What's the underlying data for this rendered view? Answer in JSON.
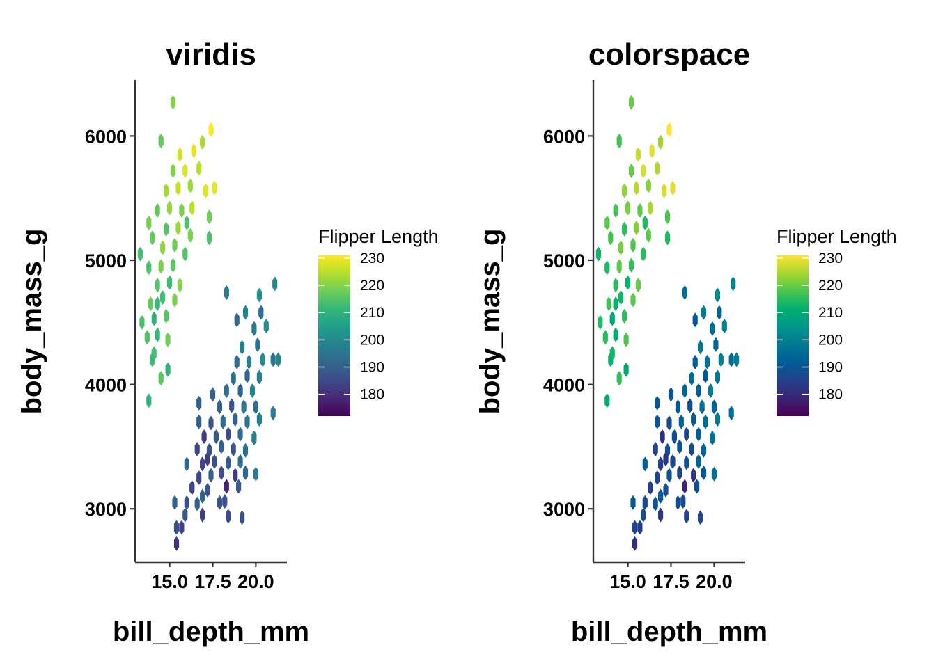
{
  "chart_data": [
    {
      "type": "hexbin",
      "title": "viridis",
      "xlabel": "bill_depth_mm",
      "ylabel": "body_mass_g",
      "xlim": [
        13.0,
        21.8
      ],
      "ylim": [
        2570,
        6450
      ],
      "xticks": [
        15.0,
        17.5,
        20.0
      ],
      "xtick_labels": [
        "15.0",
        "17.5",
        "20.0"
      ],
      "yticks": [
        3000,
        4000,
        5000,
        6000
      ],
      "ytick_labels": [
        "3000",
        "4000",
        "5000",
        "6000"
      ],
      "legend": {
        "title": "Flipper Length",
        "placement": "right",
        "ticks": [
          180,
          190,
          200,
          210,
          220,
          230
        ],
        "tick_labels": [
          "180",
          "190",
          "200",
          "210",
          "220",
          "230"
        ],
        "range": [
          172,
          231
        ],
        "palette": [
          "#440154",
          "#482878",
          "#3E4A89",
          "#31688E",
          "#26828E",
          "#1F9E89",
          "#35B779",
          "#6DCD59",
          "#B4DE2C",
          "#FDE725"
        ]
      }
    },
    {
      "type": "hexbin",
      "title": "colorspace",
      "xlabel": "bill_depth_mm",
      "ylabel": "body_mass_g",
      "xlim": [
        13.0,
        21.8
      ],
      "ylim": [
        2570,
        6450
      ],
      "xticks": [
        15.0,
        17.5,
        20.0
      ],
      "xtick_labels": [
        "15.0",
        "17.5",
        "20.0"
      ],
      "yticks": [
        3000,
        4000,
        5000,
        6000
      ],
      "ytick_labels": [
        "3000",
        "4000",
        "5000",
        "6000"
      ],
      "legend": {
        "title": "Flipper Length",
        "placement": "right",
        "ticks": [
          180,
          190,
          200,
          210,
          220,
          230
        ],
        "tick_labels": [
          "180",
          "190",
          "200",
          "210",
          "220",
          "230"
        ],
        "range": [
          172,
          231
        ],
        "palette": [
          "#4B0055",
          "#3A2474",
          "#23418C",
          "#005C96",
          "#007994",
          "#009689",
          "#00B06F",
          "#4BC54E",
          "#A6D62F",
          "#FDE333"
        ]
      }
    }
  ],
  "hex_data": {
    "adelie_chinstrap": [
      [
        15.4,
        2720,
        181
      ],
      [
        15.4,
        2850,
        186
      ],
      [
        15.7,
        2850,
        184
      ],
      [
        15.9,
        2950,
        188
      ],
      [
        16.9,
        2950,
        183
      ],
      [
        18.4,
        2940,
        185
      ],
      [
        19.2,
        2930,
        186
      ],
      [
        15.3,
        3050,
        191
      ],
      [
        16.0,
        3050,
        187
      ],
      [
        16.6,
        3040,
        190
      ],
      [
        17.9,
        3050,
        188
      ],
      [
        16.3,
        3170,
        184
      ],
      [
        17.2,
        3150,
        187
      ],
      [
        18.3,
        3180,
        178
      ],
      [
        19.0,
        3180,
        189
      ],
      [
        16.7,
        3250,
        185
      ],
      [
        17.4,
        3270,
        190
      ],
      [
        18.0,
        3290,
        186
      ],
      [
        18.8,
        3270,
        182
      ],
      [
        19.4,
        3290,
        191
      ],
      [
        16.0,
        3360,
        192
      ],
      [
        16.9,
        3360,
        184
      ],
      [
        17.6,
        3380,
        187
      ],
      [
        18.4,
        3370,
        189
      ],
      [
        19.1,
        3380,
        193
      ],
      [
        20.0,
        3280,
        196
      ],
      [
        16.6,
        3480,
        185
      ],
      [
        17.3,
        3470,
        188
      ],
      [
        18.0,
        3500,
        190
      ],
      [
        18.7,
        3480,
        187
      ],
      [
        19.4,
        3470,
        194
      ],
      [
        17.0,
        3580,
        182
      ],
      [
        17.7,
        3580,
        189
      ],
      [
        18.4,
        3600,
        186
      ],
      [
        19.1,
        3600,
        192
      ],
      [
        19.9,
        3570,
        197
      ],
      [
        16.7,
        3700,
        190
      ],
      [
        17.4,
        3690,
        187
      ],
      [
        18.1,
        3700,
        193
      ],
      [
        18.8,
        3720,
        190
      ],
      [
        19.5,
        3700,
        195
      ],
      [
        20.2,
        3720,
        198
      ],
      [
        17.9,
        3820,
        191
      ],
      [
        18.6,
        3830,
        188
      ],
      [
        19.3,
        3820,
        196
      ],
      [
        20.0,
        3820,
        193
      ],
      [
        17.5,
        3920,
        190
      ],
      [
        18.3,
        3950,
        194
      ],
      [
        19.1,
        3950,
        192
      ],
      [
        19.8,
        3950,
        199
      ],
      [
        21.0,
        3770,
        196
      ],
      [
        18.7,
        4050,
        195
      ],
      [
        19.5,
        4070,
        191
      ],
      [
        20.2,
        4060,
        198
      ],
      [
        18.9,
        4180,
        192
      ],
      [
        19.6,
        4180,
        197
      ],
      [
        20.4,
        4200,
        200
      ],
      [
        21.0,
        4200,
        195
      ],
      [
        19.2,
        4300,
        198
      ],
      [
        20.1,
        4320,
        194
      ],
      [
        21.3,
        4200,
        199
      ],
      [
        19.9,
        4450,
        196
      ],
      [
        20.6,
        4470,
        201
      ],
      [
        20.3,
        4580,
        193
      ],
      [
        19.4,
        4580,
        199
      ],
      [
        20.2,
        4720,
        202
      ],
      [
        21.1,
        4810,
        200
      ],
      [
        18.3,
        4740,
        196
      ],
      [
        18.9,
        4520,
        191
      ],
      [
        16.7,
        3850,
        190
      ],
      [
        17.2,
        3400,
        183
      ],
      [
        18.2,
        3060,
        187
      ],
      [
        16.9,
        3100,
        191
      ]
    ],
    "gentoo": [
      [
        13.8,
        3870,
        210
      ],
      [
        14.5,
        4050,
        216
      ],
      [
        14.0,
        4200,
        212
      ],
      [
        14.9,
        4120,
        210
      ],
      [
        13.7,
        4380,
        215
      ],
      [
        14.3,
        4400,
        211
      ],
      [
        14.9,
        4360,
        218
      ],
      [
        13.4,
        4500,
        214
      ],
      [
        14.1,
        4530,
        210
      ],
      [
        14.8,
        4550,
        215
      ],
      [
        13.9,
        4650,
        217
      ],
      [
        14.6,
        4700,
        213
      ],
      [
        15.3,
        4680,
        219
      ],
      [
        14.3,
        4800,
        215
      ],
      [
        15.0,
        4820,
        212
      ],
      [
        15.6,
        4800,
        220
      ],
      [
        13.8,
        4940,
        214
      ],
      [
        14.5,
        4950,
        219
      ],
      [
        15.2,
        4960,
        216
      ],
      [
        13.3,
        5050,
        213
      ],
      [
        14.6,
        5100,
        221
      ],
      [
        15.3,
        5120,
        218
      ],
      [
        15.9,
        5050,
        215
      ],
      [
        14.0,
        5180,
        217
      ],
      [
        14.8,
        5250,
        215
      ],
      [
        15.5,
        5260,
        222
      ],
      [
        16.2,
        5200,
        219
      ],
      [
        14.3,
        5400,
        217
      ],
      [
        15.0,
        5420,
        221
      ],
      [
        15.7,
        5400,
        219
      ],
      [
        16.3,
        5420,
        225
      ],
      [
        17.3,
        5350,
        218
      ],
      [
        14.8,
        5560,
        223
      ],
      [
        15.5,
        5580,
        226
      ],
      [
        16.2,
        5600,
        222
      ],
      [
        17.1,
        5560,
        228
      ],
      [
        17.6,
        5580,
        229
      ],
      [
        15.2,
        5720,
        220
      ],
      [
        15.9,
        5720,
        228
      ],
      [
        16.7,
        5740,
        225
      ],
      [
        15.6,
        5850,
        227
      ],
      [
        16.4,
        5880,
        229
      ],
      [
        16.9,
        5950,
        224
      ],
      [
        17.4,
        6050,
        231
      ],
      [
        15.2,
        6270,
        220
      ],
      [
        14.5,
        5960,
        217
      ],
      [
        16.0,
        5300,
        214
      ],
      [
        13.8,
        5300,
        219
      ],
      [
        17.3,
        5180,
        214
      ],
      [
        14.3,
        4650,
        212
      ],
      [
        14.1,
        4250,
        213
      ]
    ]
  }
}
